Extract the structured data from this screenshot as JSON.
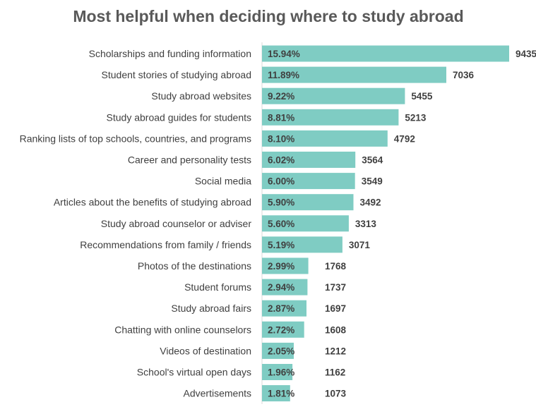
{
  "chart_data": {
    "type": "bar",
    "orientation": "horizontal",
    "title": "Most helpful when deciding where to study abroad",
    "bar_color": "#7fccc3",
    "axis_color": "#d9d9d9",
    "categories": [
      "Scholarships and funding information",
      "Student stories of studying abroad",
      "Study abroad websites",
      "Study abroad guides for students",
      "Ranking lists of top schools, countries, and programs",
      "Career and personality tests",
      "Social media",
      "Articles about the benefits of studying abroad",
      "Study abroad counselor or adviser",
      "Recommendations from family / friends",
      "Photos of the destinations",
      "Student forums",
      "Study abroad fairs",
      "Chatting with online counselors",
      "Videos of destination",
      "School's virtual open days",
      "Advertisements"
    ],
    "values": [
      9435,
      7036,
      5455,
      5213,
      4792,
      3564,
      3549,
      3492,
      3313,
      3071,
      1768,
      1737,
      1697,
      1608,
      1212,
      1162,
      1073
    ],
    "percent_labels": [
      "15.94%",
      "11.89%",
      "9.22%",
      "8.81%",
      "8.10%",
      "6.02%",
      "6.00%",
      "5.90%",
      "5.60%",
      "5.19%",
      "2.99%",
      "2.94%",
      "2.87%",
      "2.72%",
      "2.05%",
      "1.96%",
      "1.81%"
    ],
    "value_labels": [
      "9435",
      "7036",
      "5455",
      "5213",
      "4792",
      "3564",
      "3549",
      "3492",
      "3313",
      "3071",
      "1768",
      "1737",
      "1697",
      "1608",
      "1212",
      "1162",
      "1073"
    ],
    "xlim": [
      0,
      9435
    ]
  }
}
